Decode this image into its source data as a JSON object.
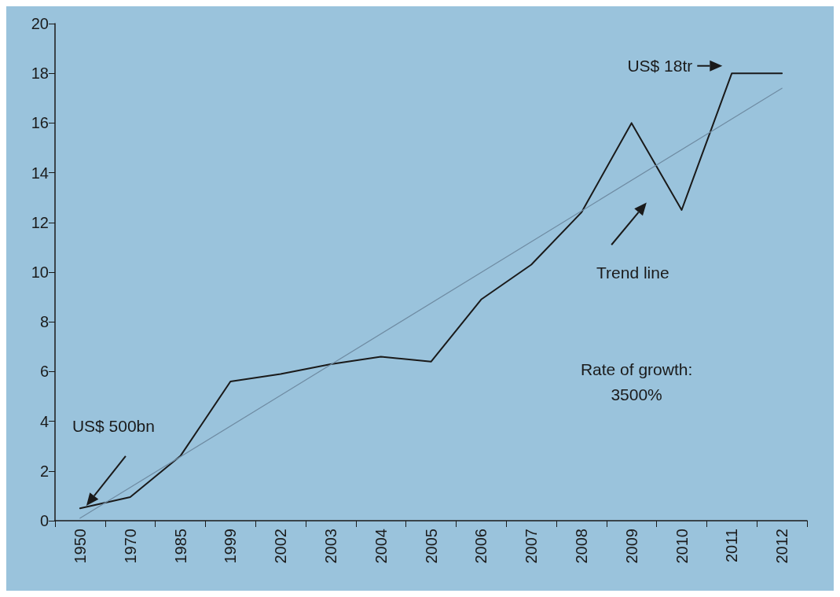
{
  "chart_data": {
    "type": "line",
    "categories": [
      "1950",
      "1970",
      "1985",
      "1999",
      "2002",
      "2003",
      "2004",
      "2005",
      "2006",
      "2007",
      "2008",
      "2009",
      "2010",
      "2011",
      "2012"
    ],
    "series": [
      {
        "color": "#1a1a1a",
        "values": [
          0.5,
          0.95,
          2.6,
          5.6,
          5.9,
          6.3,
          6.6,
          6.4,
          8.9,
          10.3,
          12.4,
          16.0,
          12.5,
          18.0,
          18.0
        ]
      },
      {
        "name": "Trend line",
        "type": "line",
        "color": "#6f8ca3",
        "values": [
          0.1,
          null,
          null,
          null,
          null,
          null,
          null,
          null,
          null,
          null,
          null,
          null,
          null,
          null,
          17.4
        ]
      }
    ],
    "ylim": [
      0,
      20
    ],
    "yticks": [
      0,
      2,
      4,
      6,
      8,
      10,
      12,
      14,
      16,
      18,
      20
    ],
    "annotations": [
      "US$ 500bn",
      "US$ 18tr",
      "Rate of growth:\n3500%"
    ],
    "grid": false,
    "legend": false,
    "marker": "none",
    "line_style": "solid"
  }
}
